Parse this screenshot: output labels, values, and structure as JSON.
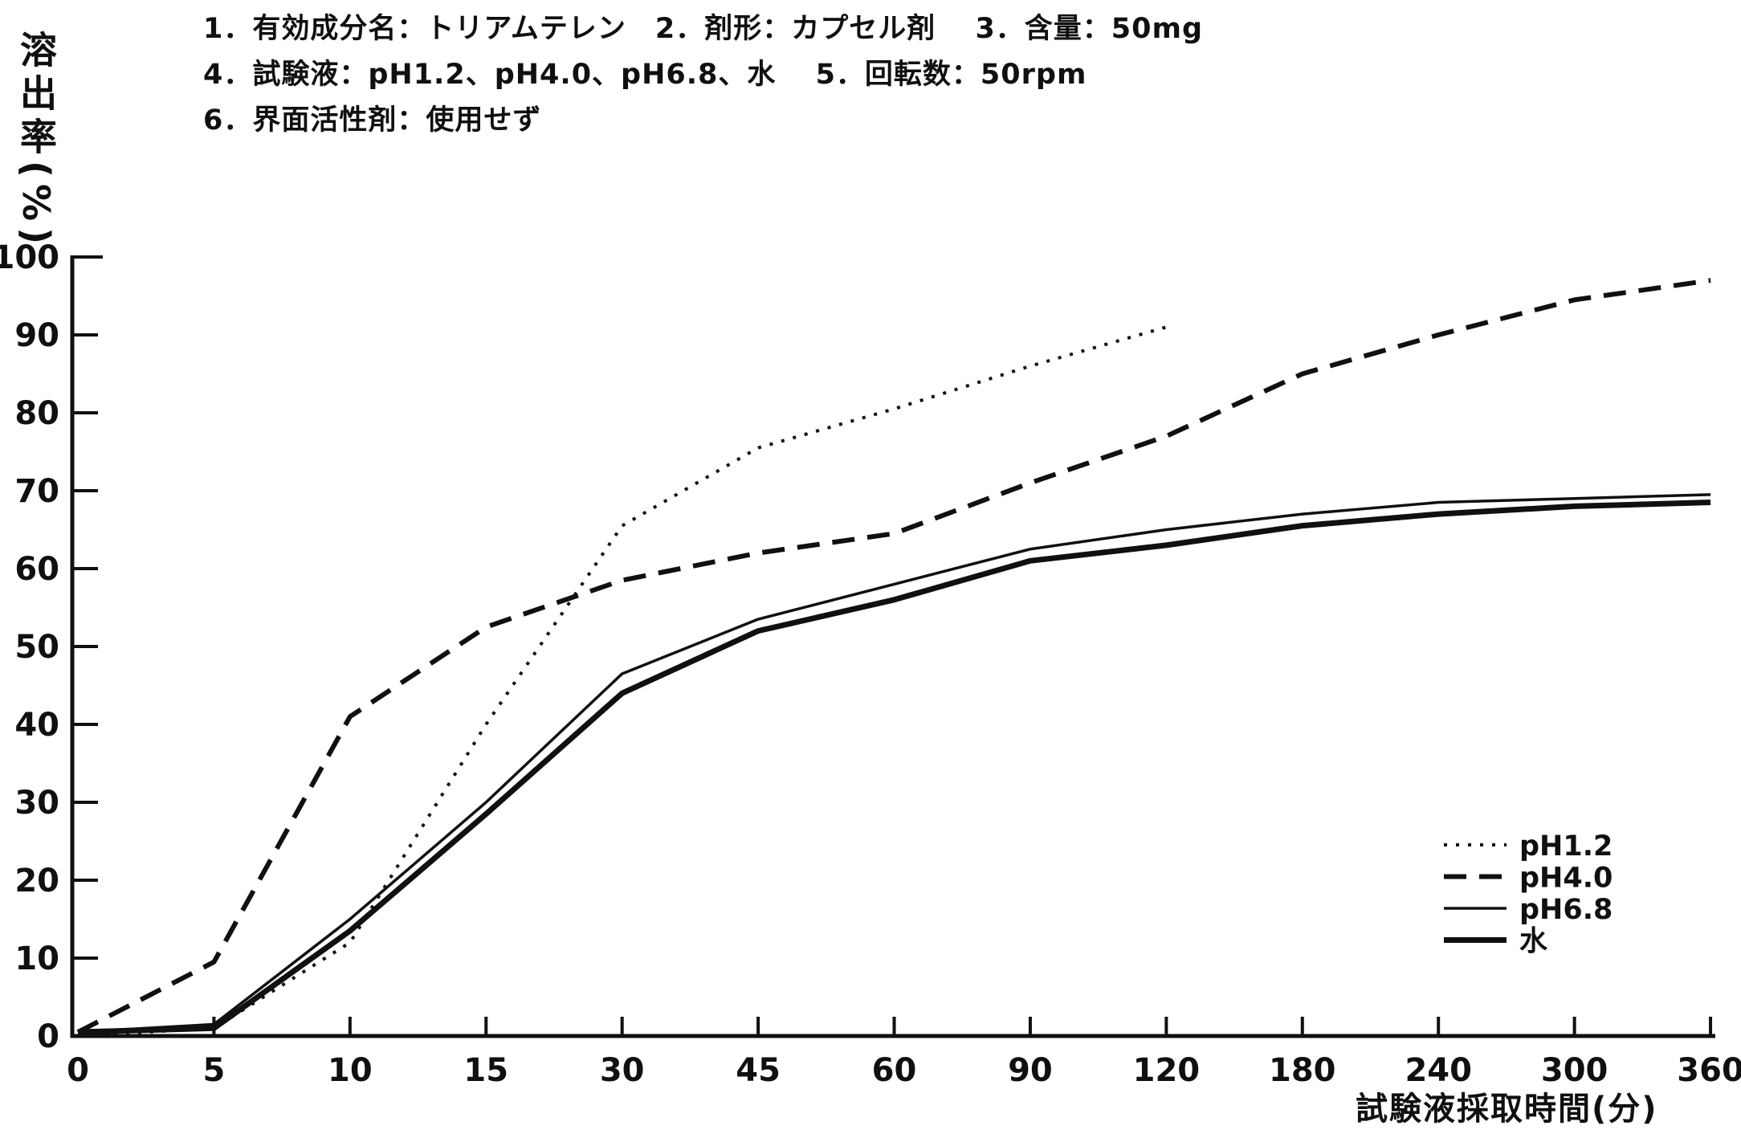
{
  "header": {
    "line1": "1．有効成分名：トリアムテレン　2．剤形：カプセル剤　 3．含量：50mg",
    "line2": "4．試験液：pH1.2、pH4.0、pH6.8、水　 5．回転数：50rpm",
    "line3": "6．界面活性剤：使用せず"
  },
  "axes": {
    "y_label": "溶出率(%)",
    "x_label": "試験液採取時間(分)"
  },
  "colors": {
    "ink": "#101010",
    "paper": "#ffffff"
  },
  "chart_data": {
    "type": "line",
    "title": "",
    "xlabel": "試験液採取時間(分)",
    "ylabel": "溶出率(%)",
    "ylim": [
      0,
      100
    ],
    "y_ticks": [
      0,
      10,
      20,
      30,
      40,
      50,
      60,
      70,
      80,
      90,
      100
    ],
    "x": [
      0,
      5,
      10,
      15,
      30,
      45,
      60,
      90,
      120,
      180,
      240,
      300,
      360
    ],
    "x_tick_labels": [
      "0",
      "5",
      "10",
      "15",
      "30",
      "45",
      "60",
      "90",
      "120",
      "180",
      "240",
      "300",
      "360"
    ],
    "x_scale": "categorical-equal-spacing",
    "grid": false,
    "legend_position": "right-middle",
    "series": [
      {
        "name": "pH1.2",
        "style": "dotted",
        "values": [
          0,
          1,
          12,
          40,
          65.5,
          75.5,
          80.5,
          86,
          91,
          null,
          null,
          null,
          null
        ]
      },
      {
        "name": "pH4.0",
        "style": "dashed",
        "values": [
          0.5,
          9.5,
          41,
          52.5,
          58.5,
          62,
          64.5,
          71,
          77,
          85,
          90,
          94.5,
          97
        ]
      },
      {
        "name": "pH6.8",
        "style": "solid-thin",
        "values": [
          0.5,
          1.5,
          15,
          30,
          46.5,
          53.5,
          58,
          62.5,
          65,
          67,
          68.5,
          69,
          69.5
        ]
      },
      {
        "name": "水",
        "style": "solid-thick",
        "values": [
          0.5,
          1,
          13.5,
          28.5,
          44,
          52,
          56,
          61,
          63,
          65.5,
          67,
          68,
          68.5
        ]
      }
    ]
  }
}
